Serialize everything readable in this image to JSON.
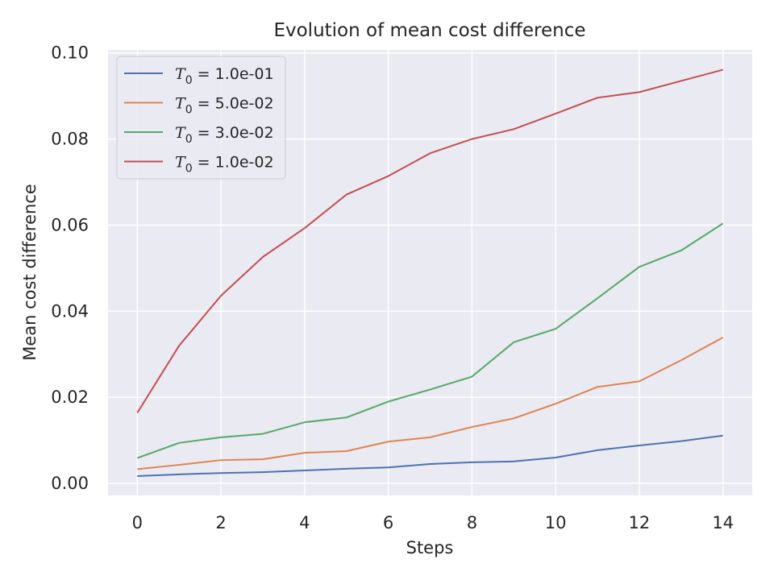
{
  "chart_data": {
    "type": "line",
    "title": "Evolution of mean cost difference",
    "xlabel": "Steps",
    "ylabel": "Mean cost difference",
    "xlim": [
      -0.7,
      14.7
    ],
    "ylim": [
      -0.0028,
      0.1007
    ],
    "xticks": [
      0,
      2,
      4,
      6,
      8,
      10,
      12,
      14
    ],
    "xtick_labels": [
      "0",
      "2",
      "4",
      "6",
      "8",
      "10",
      "12",
      "14"
    ],
    "yticks": [
      0.0,
      0.02,
      0.04,
      0.06,
      0.08,
      0.1
    ],
    "ytick_labels": [
      "0.00",
      "0.02",
      "0.04",
      "0.06",
      "0.08",
      "0.10"
    ],
    "grid": true,
    "legend_position": "top-left",
    "x": [
      0,
      1,
      2,
      3,
      4,
      5,
      6,
      7,
      8,
      9,
      10,
      11,
      12,
      13,
      14
    ],
    "series": [
      {
        "name": "T0 = 1.0e-01",
        "legend_symbol": "T",
        "legend_sub": "0",
        "legend_rest": " = 1.0e-01",
        "color": "#4c72b0",
        "values": [
          0.0017,
          0.0021,
          0.0024,
          0.0026,
          0.003,
          0.0034,
          0.0037,
          0.0045,
          0.0049,
          0.0051,
          0.006,
          0.0077,
          0.0088,
          0.0098,
          0.0111
        ]
      },
      {
        "name": "T0 = 5.0e-02",
        "legend_symbol": "T",
        "legend_sub": "0",
        "legend_rest": " = 5.0e-02",
        "color": "#dd8452",
        "values": [
          0.0033,
          0.0043,
          0.0054,
          0.0056,
          0.0071,
          0.0075,
          0.0097,
          0.0107,
          0.0131,
          0.0151,
          0.0185,
          0.0224,
          0.0237,
          0.0286,
          0.0339
        ]
      },
      {
        "name": "T0 = 3.0e-02",
        "legend_symbol": "T",
        "legend_sub": "0",
        "legend_rest": " = 3.0e-02",
        "color": "#55a868",
        "values": [
          0.0059,
          0.0094,
          0.0107,
          0.0115,
          0.0142,
          0.0153,
          0.019,
          0.0218,
          0.0248,
          0.0328,
          0.0359,
          0.043,
          0.0503,
          0.0541,
          0.0604
        ]
      },
      {
        "name": "T0 = 1.0e-02",
        "legend_symbol": "T",
        "legend_sub": "0",
        "legend_rest": " = 1.0e-02",
        "color": "#c44e52",
        "values": [
          0.0164,
          0.032,
          0.0436,
          0.0526,
          0.0593,
          0.0671,
          0.0714,
          0.0767,
          0.08,
          0.0823,
          0.0859,
          0.0896,
          0.0909,
          0.0935,
          0.0961
        ]
      }
    ]
  }
}
